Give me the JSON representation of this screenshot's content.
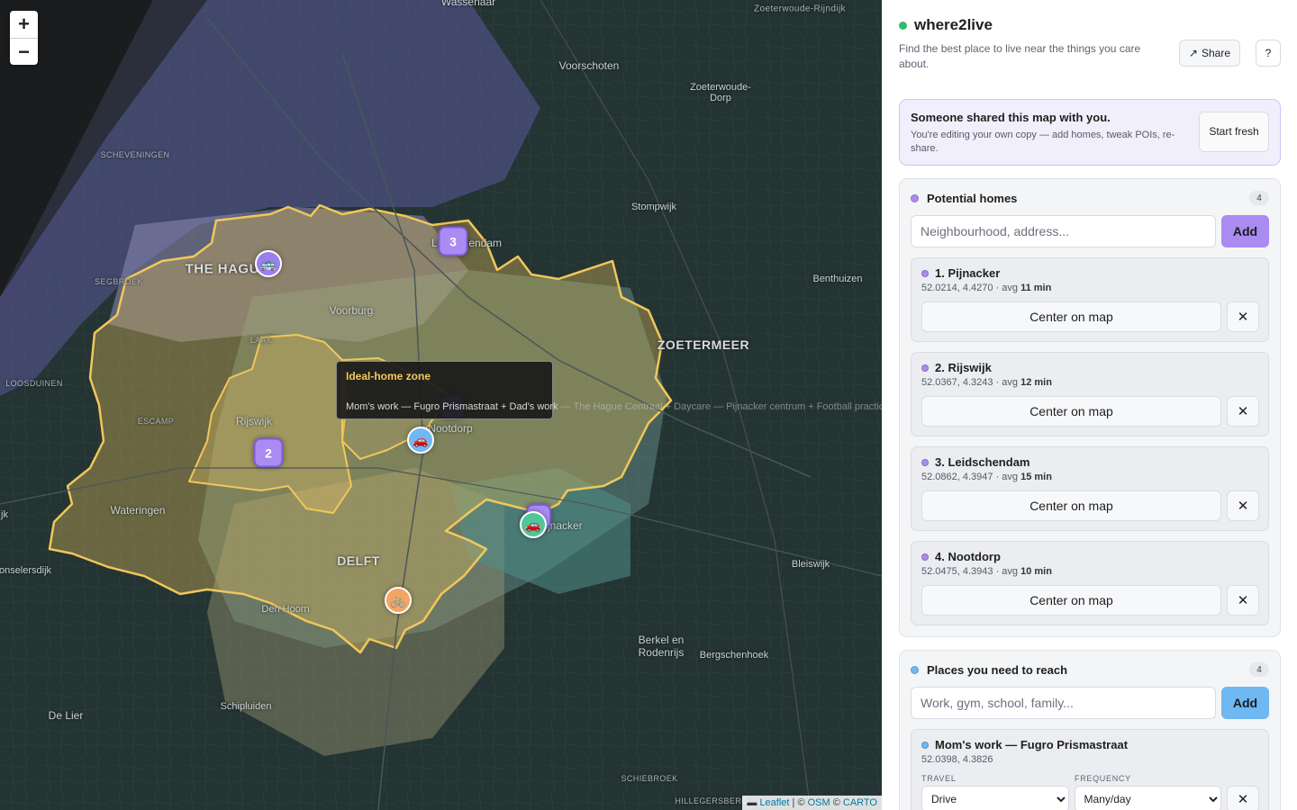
{
  "map": {
    "zoom_in": "+",
    "zoom_out": "−",
    "labels": {
      "wassenaar": "Wassenaar",
      "zoeterwoude_rijndijk": "Zoeterwoude-Rijndijk",
      "voorschoten": "Voorschoten",
      "zoeterwoude_dorp": "Zoeterwoude-Dorp",
      "scheveningen": "SCHEVENINGEN",
      "stompwijk": "Stompwijk",
      "the_hague": "THE HAGUE",
      "leidschendam": "Leidschendam",
      "benthuizen": "Benthuizen",
      "segbroek": "SEGBROEK",
      "voorburg": "Voorburg",
      "zoetermeer": "ZOETERMEER",
      "laak": "LAAK",
      "loosduinen": "LOOSDUINEN",
      "escamp": "ESCAMP",
      "rijswijk": "Rijswijk",
      "nootdorp": "Nootdorp",
      "wateringen": "Wateringen",
      "pijnacker": "Pijnacker",
      "delft": "DELFT",
      "bleiswijk": "Bleiswijk",
      "onselersdijk": "onselersdijk",
      "den_hoorn": "Den Hoorn",
      "berkel": "Berkel en Rodenrijs",
      "bergschenhoek": "Bergschenhoek",
      "de_lier": "De Lier",
      "schipluiden": "Schipluiden",
      "schiebroek": "SCHIEBROEK",
      "hillegersberg": "HILLEGERSBERG",
      "edge_jk": "jk"
    },
    "clusters": [
      {
        "id": "leidschendam",
        "count": "3"
      },
      {
        "id": "rijswijk",
        "count": "2"
      }
    ],
    "tooltip": {
      "title": "Ideal-home zone",
      "body": "Mom's work — Fugro Prismastraat + Dad's work",
      "body_overflow": " — The Hague Centraal + Daycare — Pijnacker centrum + Football practice"
    },
    "attribution": {
      "leaflet": "Leaflet",
      "sep": " | © ",
      "osm": "OSM",
      "mid": " © ",
      "carto": "CARTO"
    },
    "colors": {
      "ideal_zone": "#f1c75b",
      "cluster": "#a98bf2",
      "poi_bus": "#9b7ff0",
      "poi_drive": "#6fb8f2",
      "poi_drive_green": "#4fc79a",
      "poi_bike": "#f2a564"
    },
    "poi_icons": [
      "bus-icon",
      "car-icon",
      "car-icon",
      "bicycle-icon"
    ]
  },
  "sidebar": {
    "app_title": "where2live",
    "subtitle": "Find the best place to live near the things you care about.",
    "share_label": "Share",
    "help_label": "?",
    "banner": {
      "title": "Someone shared this map with you.",
      "text": "You're editing your own copy — add homes, tweak POIs, re-share.",
      "start_label": "Start fresh"
    },
    "homes": {
      "title": "Potential homes",
      "count": "4",
      "placeholder": "Neighbourhood, address...",
      "add_label": "Add",
      "dot_color": "#a98bf2",
      "items": [
        {
          "name": "1. Pijnacker",
          "coords": "52.0214, 4.4270 · avg ",
          "avg": "11 min",
          "center_label": "Center on map",
          "remove": "✕"
        },
        {
          "name": "2. Rijswijk",
          "coords": "52.0367, 4.3243 · avg ",
          "avg": "12 min",
          "center_label": "Center on map",
          "remove": "✕"
        },
        {
          "name": "3. Leidschendam",
          "coords": "52.0862, 4.3947 · avg ",
          "avg": "15 min",
          "center_label": "Center on map",
          "remove": "✕"
        },
        {
          "name": "4. Nootdorp",
          "coords": "52.0475, 4.3943 · avg ",
          "avg": "10 min",
          "center_label": "Center on map",
          "remove": "✕"
        }
      ]
    },
    "places": {
      "title": "Places you need to reach",
      "count": "4",
      "placeholder": "Work, gym, school, family...",
      "add_label": "Add",
      "dot_color": "#6fb8f2",
      "items": [
        {
          "name": "Mom's work — Fugro Prismastraat",
          "coords": "52.0398, 4.3826",
          "travel_label": "TRAVEL",
          "frequency_label": "FREQUENCY",
          "travel": "Drive",
          "frequency": "Many/day",
          "remove": "✕"
        }
      ]
    }
  }
}
